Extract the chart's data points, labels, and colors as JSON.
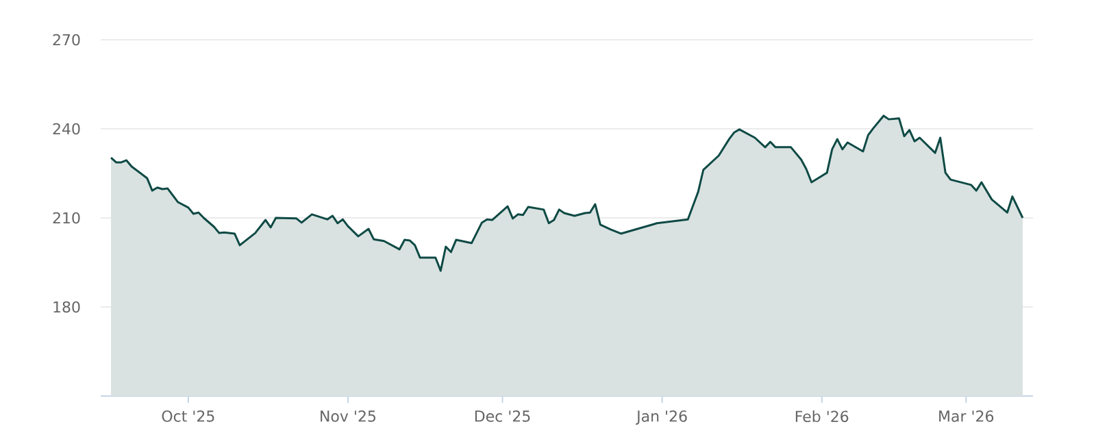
{
  "chart_data": {
    "type": "area",
    "color": "#0f4a45",
    "grid": "y",
    "x": [
      "2025-09-16",
      "2025-09-17",
      "2025-09-18",
      "2025-09-19",
      "2025-09-20",
      "2025-09-23",
      "2025-09-24",
      "2025-09-25",
      "2025-09-26",
      "2025-09-27",
      "2025-09-29",
      "2025-10-01",
      "2025-10-02",
      "2025-10-03",
      "2025-10-04",
      "2025-10-06",
      "2025-10-07",
      "2025-10-08",
      "2025-10-10",
      "2025-10-11",
      "2025-10-14",
      "2025-10-16",
      "2025-10-17",
      "2025-10-18",
      "2025-10-22",
      "2025-10-23",
      "2025-10-25",
      "2025-10-28",
      "2025-10-29",
      "2025-10-30",
      "2025-10-31",
      "2025-11-01",
      "2025-11-03",
      "2025-11-05",
      "2025-11-06",
      "2025-11-08",
      "2025-11-11",
      "2025-11-12",
      "2025-11-13",
      "2025-11-14",
      "2025-11-15",
      "2025-11-18",
      "2025-11-19",
      "2025-11-20",
      "2025-11-21",
      "2025-11-22",
      "2025-11-25",
      "2025-11-27",
      "2025-11-28",
      "2025-11-29",
      "2025-12-02",
      "2025-12-03",
      "2025-12-04",
      "2025-12-05",
      "2025-12-06",
      "2025-12-09",
      "2025-12-10",
      "2025-12-11",
      "2025-12-12",
      "2025-12-13",
      "2025-12-15",
      "2025-12-17",
      "2025-12-18",
      "2025-12-19",
      "2025-12-20",
      "2025-12-22",
      "2025-12-24",
      "2025-12-30",
      "2025-12-31",
      "2026-01-06",
      "2026-01-08",
      "2026-01-09",
      "2026-01-12",
      "2026-01-14",
      "2026-01-15",
      "2026-01-16",
      "2026-01-19",
      "2026-01-21",
      "2026-01-22",
      "2026-01-23",
      "2026-01-26",
      "2026-01-28",
      "2026-01-29",
      "2026-01-30",
      "2026-02-02",
      "2026-02-03",
      "2026-02-04",
      "2026-02-05",
      "2026-02-06",
      "2026-02-09",
      "2026-02-10",
      "2026-02-11",
      "2026-02-13",
      "2026-02-14",
      "2026-02-16",
      "2026-02-17",
      "2026-02-18",
      "2026-02-19",
      "2026-02-20",
      "2026-02-23",
      "2026-02-24",
      "2026-02-25",
      "2026-02-26",
      "2026-03-02",
      "2026-03-03",
      "2026-03-04",
      "2026-03-06",
      "2026-03-09",
      "2026-03-10",
      "2026-03-12"
    ],
    "values": [
      230.3,
      228.7,
      228.7,
      229.4,
      227.3,
      223.4,
      219.2,
      220.2,
      219.7,
      219.9,
      215.3,
      213.5,
      211.4,
      211.8,
      210.0,
      207.0,
      204.9,
      205.1,
      204.7,
      200.8,
      204.9,
      209.3,
      206.8,
      210.0,
      209.8,
      208.4,
      211.2,
      209.5,
      210.7,
      208.2,
      209.5,
      207.2,
      203.8,
      206.3,
      202.8,
      202.2,
      199.4,
      202.6,
      202.4,
      200.8,
      196.6,
      196.6,
      192.2,
      200.3,
      198.5,
      202.6,
      201.5,
      208.4,
      209.5,
      209.3,
      213.9,
      209.8,
      211.2,
      211.0,
      213.7,
      212.8,
      208.2,
      209.3,
      212.8,
      211.6,
      210.7,
      211.6,
      211.8,
      214.6,
      207.7,
      206.1,
      204.7,
      207.7,
      208.2,
      209.5,
      218.8,
      226.2,
      231.0,
      236.5,
      238.8,
      239.8,
      237.0,
      233.8,
      235.6,
      233.8,
      233.8,
      229.6,
      226.4,
      222.0,
      225.2,
      233.1,
      236.5,
      233.1,
      235.4,
      232.4,
      237.9,
      240.2,
      244.4,
      243.2,
      243.5,
      237.5,
      239.6,
      235.8,
      237.0,
      231.9,
      237.0,
      225.2,
      222.9,
      221.1,
      219.2,
      222.0,
      216.2,
      211.8,
      217.2,
      210.0
    ],
    "xlim": [
      "2025-09-14",
      "2026-03-14"
    ],
    "xticks": [
      {
        "value": "2025-10-01",
        "label": "Oct '25"
      },
      {
        "value": "2025-11-01",
        "label": "Nov '25"
      },
      {
        "value": "2025-12-01",
        "label": "Dec '25"
      },
      {
        "value": "2026-01-01",
        "label": "Jan '26"
      },
      {
        "value": "2026-02-01",
        "label": "Feb '26"
      },
      {
        "value": "2026-03-01",
        "label": "Mar '26"
      }
    ],
    "ylim": [
      150,
      270
    ],
    "yticks": [
      180,
      210,
      240,
      270
    ]
  }
}
